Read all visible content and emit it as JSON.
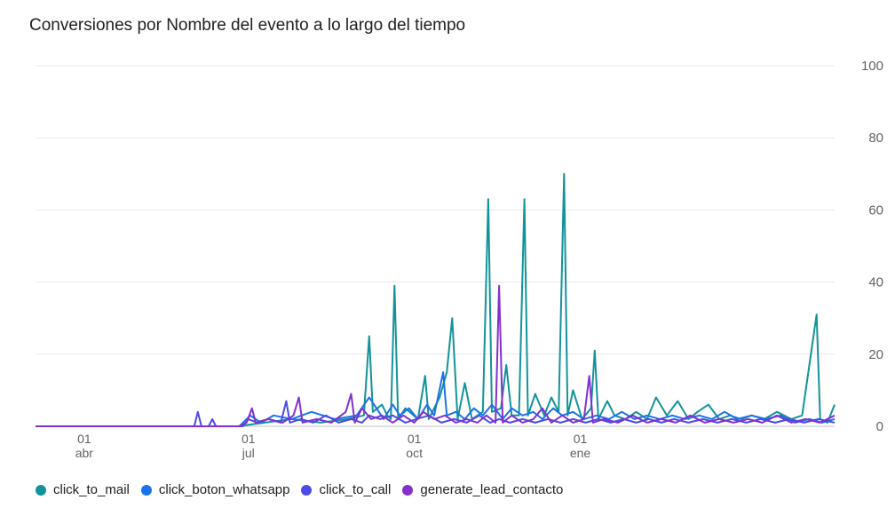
{
  "chart_data": {
    "type": "line",
    "title": "Conversiones por Nombre del evento a lo largo del tiempo",
    "xlabel": "",
    "ylabel": "",
    "ylim": [
      0,
      100
    ],
    "y_ticks": [
      "0",
      "20",
      "40",
      "60",
      "80",
      "100"
    ],
    "y_axis_position": "right",
    "x_ticks": [
      {
        "day": "01",
        "month": "abr",
        "date": "2023-04-01"
      },
      {
        "day": "01",
        "month": "jul",
        "date": "2023-07-01"
      },
      {
        "day": "01",
        "month": "oct",
        "date": "2023-10-01"
      },
      {
        "day": "01",
        "month": "ene",
        "date": "2024-01-01"
      }
    ],
    "x_range": [
      "2023-03-05",
      "2024-05-21"
    ],
    "grid": true,
    "legend_position": "bottom-left",
    "series": [
      {
        "name": "click_to_mail",
        "color": "#12939a",
        "data": [
          [
            "2023-03-05",
            0
          ],
          [
            "2023-06-25",
            0
          ],
          [
            "2023-07-10",
            1
          ],
          [
            "2023-07-25",
            2
          ],
          [
            "2023-08-10",
            1
          ],
          [
            "2023-08-25",
            2
          ],
          [
            "2023-09-03",
            3
          ],
          [
            "2023-09-06",
            25
          ],
          [
            "2023-09-08",
            4
          ],
          [
            "2023-09-13",
            6
          ],
          [
            "2023-09-16",
            3
          ],
          [
            "2023-09-18",
            2
          ],
          [
            "2023-09-20",
            39
          ],
          [
            "2023-09-22",
            2
          ],
          [
            "2023-09-26",
            5
          ],
          [
            "2023-10-03",
            2
          ],
          [
            "2023-10-07",
            14
          ],
          [
            "2023-10-09",
            2
          ],
          [
            "2023-10-15",
            8
          ],
          [
            "2023-10-19",
            15
          ],
          [
            "2023-10-22",
            30
          ],
          [
            "2023-10-25",
            2
          ],
          [
            "2023-10-29",
            12
          ],
          [
            "2023-11-02",
            2
          ],
          [
            "2023-11-08",
            4
          ],
          [
            "2023-11-11",
            63
          ],
          [
            "2023-11-13",
            4
          ],
          [
            "2023-11-18",
            5
          ],
          [
            "2023-11-21",
            17
          ],
          [
            "2023-11-24",
            3
          ],
          [
            "2023-11-28",
            3
          ],
          [
            "2023-12-01",
            63
          ],
          [
            "2023-12-03",
            3
          ],
          [
            "2023-12-07",
            9
          ],
          [
            "2023-12-12",
            3
          ],
          [
            "2023-12-16",
            8
          ],
          [
            "2023-12-20",
            4
          ],
          [
            "2023-12-23",
            70
          ],
          [
            "2023-12-25",
            3
          ],
          [
            "2023-12-28",
            10
          ],
          [
            "2024-01-02",
            2
          ],
          [
            "2024-01-07",
            5
          ],
          [
            "2024-01-09",
            21
          ],
          [
            "2024-01-11",
            2
          ],
          [
            "2024-01-16",
            7
          ],
          [
            "2024-01-20",
            3
          ],
          [
            "2024-01-26",
            2
          ],
          [
            "2024-02-01",
            4
          ],
          [
            "2024-02-07",
            2
          ],
          [
            "2024-02-12",
            8
          ],
          [
            "2024-02-18",
            3
          ],
          [
            "2024-02-24",
            7
          ],
          [
            "2024-03-01",
            2
          ],
          [
            "2024-03-06",
            4
          ],
          [
            "2024-03-12",
            6
          ],
          [
            "2024-03-18",
            2
          ],
          [
            "2024-03-24",
            3
          ],
          [
            "2024-03-30",
            2
          ],
          [
            "2024-04-05",
            3
          ],
          [
            "2024-04-12",
            2
          ],
          [
            "2024-04-19",
            4
          ],
          [
            "2024-04-27",
            2
          ],
          [
            "2024-05-03",
            3
          ],
          [
            "2024-05-11",
            31
          ],
          [
            "2024-05-13",
            2
          ],
          [
            "2024-05-17",
            1
          ],
          [
            "2024-05-21",
            6
          ]
        ]
      },
      {
        "name": "click_boton_whatsapp",
        "color": "#1a73e8",
        "data": [
          [
            "2023-03-05",
            0
          ],
          [
            "2023-06-26",
            0
          ],
          [
            "2023-07-02",
            3
          ],
          [
            "2023-07-08",
            1
          ],
          [
            "2023-07-15",
            3
          ],
          [
            "2023-07-25",
            2
          ],
          [
            "2023-08-05",
            4
          ],
          [
            "2023-08-18",
            2
          ],
          [
            "2023-08-30",
            3
          ],
          [
            "2023-09-06",
            8
          ],
          [
            "2023-09-10",
            5
          ],
          [
            "2023-09-14",
            2
          ],
          [
            "2023-09-19",
            6
          ],
          [
            "2023-09-23",
            3
          ],
          [
            "2023-09-28",
            5
          ],
          [
            "2023-10-03",
            2
          ],
          [
            "2023-10-08",
            6
          ],
          [
            "2023-10-12",
            3
          ],
          [
            "2023-10-17",
            15
          ],
          [
            "2023-10-19",
            3
          ],
          [
            "2023-10-24",
            4
          ],
          [
            "2023-10-29",
            2
          ],
          [
            "2023-11-03",
            5
          ],
          [
            "2023-11-08",
            3
          ],
          [
            "2023-11-13",
            6
          ],
          [
            "2023-11-19",
            2
          ],
          [
            "2023-11-24",
            5
          ],
          [
            "2023-11-30",
            3
          ],
          [
            "2023-12-06",
            4
          ],
          [
            "2023-12-11",
            2
          ],
          [
            "2023-12-17",
            5
          ],
          [
            "2023-12-22",
            3
          ],
          [
            "2023-12-28",
            4
          ],
          [
            "2024-01-03",
            2
          ],
          [
            "2024-01-10",
            3
          ],
          [
            "2024-01-17",
            2
          ],
          [
            "2024-01-24",
            4
          ],
          [
            "2024-01-31",
            2
          ],
          [
            "2024-02-07",
            3
          ],
          [
            "2024-02-14",
            2
          ],
          [
            "2024-02-21",
            3
          ],
          [
            "2024-02-28",
            2
          ],
          [
            "2024-03-07",
            3
          ],
          [
            "2024-03-14",
            2
          ],
          [
            "2024-03-21",
            4
          ],
          [
            "2024-03-28",
            2
          ],
          [
            "2024-04-05",
            3
          ],
          [
            "2024-04-13",
            2
          ],
          [
            "2024-04-21",
            3
          ],
          [
            "2024-04-29",
            1
          ],
          [
            "2024-05-07",
            2
          ],
          [
            "2024-05-14",
            1
          ],
          [
            "2024-05-21",
            2
          ]
        ]
      },
      {
        "name": "click_to_call",
        "color": "#4b4be8",
        "data": [
          [
            "2023-03-05",
            0
          ],
          [
            "2023-06-01",
            0
          ],
          [
            "2023-06-03",
            4
          ],
          [
            "2023-06-05",
            0
          ],
          [
            "2023-06-09",
            0
          ],
          [
            "2023-06-11",
            2
          ],
          [
            "2023-06-13",
            0
          ],
          [
            "2023-06-28",
            0
          ],
          [
            "2023-07-01",
            2
          ],
          [
            "2023-07-06",
            1
          ],
          [
            "2023-07-12",
            2
          ],
          [
            "2023-07-19",
            1
          ],
          [
            "2023-07-22",
            7
          ],
          [
            "2023-07-24",
            1
          ],
          [
            "2023-07-30",
            2
          ],
          [
            "2023-08-06",
            1
          ],
          [
            "2023-08-13",
            3
          ],
          [
            "2023-08-20",
            1
          ],
          [
            "2023-08-27",
            2
          ],
          [
            "2023-09-02",
            1
          ],
          [
            "2023-09-06",
            3
          ],
          [
            "2023-09-12",
            2
          ],
          [
            "2023-09-19",
            3
          ],
          [
            "2023-09-26",
            1
          ],
          [
            "2023-10-02",
            2
          ],
          [
            "2023-10-09",
            3
          ],
          [
            "2023-10-16",
            1
          ],
          [
            "2023-10-23",
            2
          ],
          [
            "2023-10-30",
            1
          ],
          [
            "2023-11-06",
            3
          ],
          [
            "2023-11-12",
            1
          ],
          [
            "2023-11-17",
            2
          ],
          [
            "2023-11-23",
            1
          ],
          [
            "2023-11-30",
            2
          ],
          [
            "2023-12-07",
            1
          ],
          [
            "2023-12-14",
            2
          ],
          [
            "2023-12-21",
            1
          ],
          [
            "2023-12-28",
            2
          ],
          [
            "2024-01-04",
            1
          ],
          [
            "2024-01-11",
            2
          ],
          [
            "2024-01-18",
            1
          ],
          [
            "2024-01-25",
            2
          ],
          [
            "2024-02-01",
            1
          ],
          [
            "2024-02-08",
            2
          ],
          [
            "2024-02-15",
            1
          ],
          [
            "2024-02-22",
            2
          ],
          [
            "2024-03-01",
            1
          ],
          [
            "2024-03-09",
            2
          ],
          [
            "2024-03-17",
            1
          ],
          [
            "2024-03-25",
            2
          ],
          [
            "2024-04-02",
            1
          ],
          [
            "2024-04-10",
            2
          ],
          [
            "2024-04-18",
            1
          ],
          [
            "2024-04-26",
            2
          ],
          [
            "2024-05-04",
            1
          ],
          [
            "2024-05-12",
            2
          ],
          [
            "2024-05-21",
            1
          ]
        ]
      },
      {
        "name": "generate_lead_contacto",
        "color": "#8430ce",
        "data": [
          [
            "2023-03-05",
            0
          ],
          [
            "2023-06-26",
            0
          ],
          [
            "2023-06-30",
            1
          ],
          [
            "2023-07-03",
            5
          ],
          [
            "2023-07-05",
            1
          ],
          [
            "2023-07-12",
            2
          ],
          [
            "2023-07-20",
            1
          ],
          [
            "2023-07-26",
            3
          ],
          [
            "2023-07-29",
            8
          ],
          [
            "2023-07-31",
            1
          ],
          [
            "2023-08-08",
            2
          ],
          [
            "2023-08-16",
            1
          ],
          [
            "2023-08-24",
            4
          ],
          [
            "2023-08-27",
            9
          ],
          [
            "2023-08-29",
            1
          ],
          [
            "2023-09-02",
            5
          ],
          [
            "2023-09-07",
            2
          ],
          [
            "2023-09-13",
            3
          ],
          [
            "2023-09-19",
            1
          ],
          [
            "2023-09-25",
            3
          ],
          [
            "2023-10-01",
            1
          ],
          [
            "2023-10-06",
            4
          ],
          [
            "2023-10-12",
            2
          ],
          [
            "2023-10-18",
            3
          ],
          [
            "2023-10-24",
            1
          ],
          [
            "2023-10-30",
            2
          ],
          [
            "2023-11-05",
            1
          ],
          [
            "2023-11-10",
            3
          ],
          [
            "2023-11-15",
            1
          ],
          [
            "2023-11-17",
            39
          ],
          [
            "2023-11-19",
            1
          ],
          [
            "2023-11-24",
            3
          ],
          [
            "2023-11-30",
            1
          ],
          [
            "2023-12-06",
            2
          ],
          [
            "2023-12-11",
            5
          ],
          [
            "2023-12-16",
            1
          ],
          [
            "2023-12-22",
            3
          ],
          [
            "2023-12-28",
            1
          ],
          [
            "2024-01-03",
            2
          ],
          [
            "2024-01-06",
            14
          ],
          [
            "2024-01-08",
            1
          ],
          [
            "2024-01-14",
            2
          ],
          [
            "2024-01-22",
            1
          ],
          [
            "2024-01-30",
            3
          ],
          [
            "2024-02-07",
            1
          ],
          [
            "2024-02-15",
            2
          ],
          [
            "2024-02-23",
            1
          ],
          [
            "2024-03-02",
            3
          ],
          [
            "2024-03-10",
            1
          ],
          [
            "2024-03-18",
            2
          ],
          [
            "2024-03-26",
            1
          ],
          [
            "2024-04-03",
            2
          ],
          [
            "2024-04-11",
            1
          ],
          [
            "2024-04-19",
            3
          ],
          [
            "2024-04-27",
            1
          ],
          [
            "2024-05-05",
            2
          ],
          [
            "2024-05-13",
            1
          ],
          [
            "2024-05-21",
            3
          ]
        ]
      }
    ]
  }
}
